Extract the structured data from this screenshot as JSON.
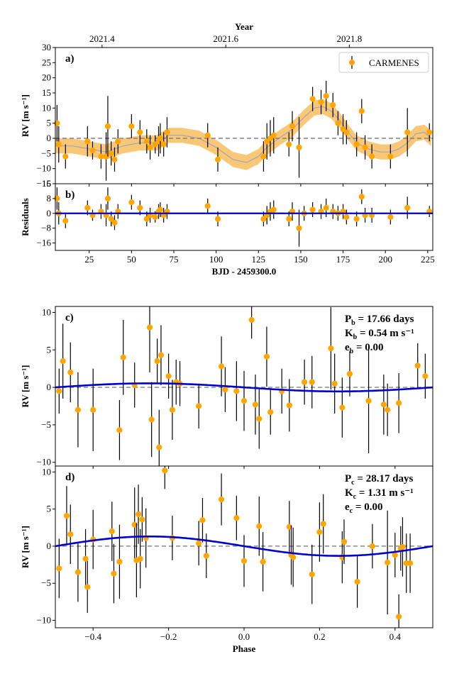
{
  "chart_data": [
    {
      "panel": "a)",
      "type": "scatter",
      "xlabel": "BJD - 2459300.0",
      "ylabel": "RV [m s⁻¹]",
      "top_axis_label": "Year",
      "top_ticks": [
        "2021.4",
        "2021.6",
        "2021.8"
      ],
      "top_tick_x": [
        32.6,
        105.7,
        178.7
      ],
      "xlim": [
        5,
        228
      ],
      "ylim": [
        -15,
        30
      ],
      "yticks": [
        -15,
        -10,
        -5,
        0,
        5,
        10,
        15,
        20,
        25,
        30
      ],
      "xticks": [
        25,
        50,
        75,
        100,
        125,
        150,
        175,
        200,
        225
      ],
      "legend": {
        "label": "CARMENES",
        "position": "top-right"
      },
      "colors": {
        "points": "#ffa500",
        "errorbars": "#000000",
        "model": "#a0a0c8",
        "band": "#f7b64a",
        "zero": "#808080"
      },
      "points": [
        {
          "x": 6,
          "y": 5,
          "e": 6
        },
        {
          "x": 7,
          "y": -2,
          "e": 6
        },
        {
          "x": 11,
          "y": -6,
          "e": 4
        },
        {
          "x": 24,
          "y": -1,
          "e": 5
        },
        {
          "x": 27,
          "y": -4,
          "e": 3
        },
        {
          "x": 32,
          "y": -6,
          "e": 4
        },
        {
          "x": 35,
          "y": -6,
          "e": 8
        },
        {
          "x": 36,
          "y": 4,
          "e": 10
        },
        {
          "x": 38,
          "y": -5,
          "e": 4
        },
        {
          "x": 40,
          "y": -7,
          "e": 4
        },
        {
          "x": 42,
          "y": -1,
          "e": 4
        },
        {
          "x": 50,
          "y": 4,
          "e": 4
        },
        {
          "x": 55,
          "y": 2,
          "e": 4
        },
        {
          "x": 59,
          "y": -1,
          "e": 4
        },
        {
          "x": 61,
          "y": -3,
          "e": 4
        },
        {
          "x": 64,
          "y": -2,
          "e": 3
        },
        {
          "x": 66,
          "y": -1,
          "e": 5
        },
        {
          "x": 67,
          "y": 0,
          "e": 5
        },
        {
          "x": 69,
          "y": -2,
          "e": 4
        },
        {
          "x": 71,
          "y": 2,
          "e": 5
        },
        {
          "x": 95,
          "y": 1,
          "e": 4
        },
        {
          "x": 101,
          "y": -7,
          "e": 4
        },
        {
          "x": 128,
          "y": -6,
          "e": 5
        },
        {
          "x": 130,
          "y": -1,
          "e": 6
        },
        {
          "x": 132,
          "y": 0,
          "e": 6
        },
        {
          "x": 134,
          "y": 1,
          "e": 6
        },
        {
          "x": 143,
          "y": -2,
          "e": 4
        },
        {
          "x": 145,
          "y": 4,
          "e": 5
        },
        {
          "x": 149,
          "y": -3,
          "e": 10
        },
        {
          "x": 157,
          "y": 13,
          "e": 4
        },
        {
          "x": 162,
          "y": 12,
          "e": 4
        },
        {
          "x": 165,
          "y": 14,
          "e": 5
        },
        {
          "x": 169,
          "y": 11,
          "e": 4
        },
        {
          "x": 172,
          "y": 5,
          "e": 4
        },
        {
          "x": 175,
          "y": 3,
          "e": 5
        },
        {
          "x": 177,
          "y": 2,
          "e": 4
        },
        {
          "x": 183,
          "y": -2,
          "e": 4
        },
        {
          "x": 186,
          "y": 9,
          "e": 4
        },
        {
          "x": 188,
          "y": -3,
          "e": 4
        },
        {
          "x": 192,
          "y": -6,
          "e": 4
        },
        {
          "x": 203,
          "y": -6,
          "e": 4
        },
        {
          "x": 213,
          "y": 2,
          "e": 8
        },
        {
          "x": 226,
          "y": 2,
          "e": 3
        }
      ],
      "model": {
        "x": [
          5,
          15,
          25,
          35,
          45,
          55,
          65,
          72,
          80,
          90,
          100,
          110,
          118,
          125,
          130,
          137,
          145,
          152,
          158,
          163,
          168,
          173,
          178,
          183,
          190,
          197,
          203,
          208,
          213,
          218,
          223,
          227
        ],
        "y": [
          -2.5,
          -2.5,
          -3.5,
          -4.5,
          -2.5,
          -1.5,
          -1.5,
          1,
          1,
          0,
          -3,
          -7,
          -8,
          -6,
          -3,
          0,
          3,
          7,
          10,
          10.5,
          9,
          6,
          2,
          -1.5,
          -3.5,
          -4.5,
          -4.5,
          -3.5,
          -1.5,
          1.5,
          2,
          0
        ]
      },
      "band_halfwidth": 2.5
    },
    {
      "panel": "b)",
      "type": "scatter",
      "ylabel": "Residuals",
      "xlim": [
        5,
        228
      ],
      "ylim": [
        -20,
        16
      ],
      "yticks": [
        -16,
        -8,
        0,
        8,
        16
      ],
      "points": [
        {
          "x": 6,
          "y": 8,
          "e": 6
        },
        {
          "x": 7,
          "y": 0,
          "e": 6
        },
        {
          "x": 11,
          "y": -4,
          "e": 4
        },
        {
          "x": 24,
          "y": 3,
          "e": 4
        },
        {
          "x": 27,
          "y": -1,
          "e": 3
        },
        {
          "x": 32,
          "y": 1,
          "e": 4
        },
        {
          "x": 35,
          "y": -1,
          "e": 6
        },
        {
          "x": 36,
          "y": 8,
          "e": 6
        },
        {
          "x": 38,
          "y": -3,
          "e": 4
        },
        {
          "x": 40,
          "y": -5,
          "e": 4
        },
        {
          "x": 42,
          "y": 1,
          "e": 4
        },
        {
          "x": 50,
          "y": 6,
          "e": 4
        },
        {
          "x": 55,
          "y": 3,
          "e": 4
        },
        {
          "x": 59,
          "y": -3,
          "e": 4
        },
        {
          "x": 61,
          "y": -1,
          "e": 4
        },
        {
          "x": 64,
          "y": -2,
          "e": 3
        },
        {
          "x": 66,
          "y": 1,
          "e": 4
        },
        {
          "x": 67,
          "y": 2,
          "e": 4
        },
        {
          "x": 69,
          "y": -1,
          "e": 4
        },
        {
          "x": 71,
          "y": 1,
          "e": 4
        },
        {
          "x": 95,
          "y": 4,
          "e": 4
        },
        {
          "x": 101,
          "y": -3,
          "e": 4
        },
        {
          "x": 128,
          "y": -3,
          "e": 4
        },
        {
          "x": 130,
          "y": -1,
          "e": 5
        },
        {
          "x": 132,
          "y": 1,
          "e": 5
        },
        {
          "x": 134,
          "y": 2,
          "e": 5
        },
        {
          "x": 143,
          "y": -3,
          "e": 4
        },
        {
          "x": 145,
          "y": 1,
          "e": 5
        },
        {
          "x": 149,
          "y": -8,
          "e": 10
        },
        {
          "x": 152,
          "y": 0,
          "e": 4
        },
        {
          "x": 157,
          "y": 2,
          "e": 4
        },
        {
          "x": 162,
          "y": 1,
          "e": 4
        },
        {
          "x": 165,
          "y": 3,
          "e": 5
        },
        {
          "x": 169,
          "y": 1,
          "e": 4
        },
        {
          "x": 172,
          "y": 0,
          "e": 4
        },
        {
          "x": 175,
          "y": 1,
          "e": 4
        },
        {
          "x": 177,
          "y": -2,
          "e": 4
        },
        {
          "x": 183,
          "y": -3,
          "e": 4
        },
        {
          "x": 186,
          "y": 9,
          "e": 4
        },
        {
          "x": 188,
          "y": -1,
          "e": 4
        },
        {
          "x": 192,
          "y": -1,
          "e": 4
        },
        {
          "x": 203,
          "y": -2,
          "e": 4
        },
        {
          "x": 213,
          "y": 3,
          "e": 6
        },
        {
          "x": 226,
          "y": 1,
          "e": 3
        }
      ]
    },
    {
      "panel": "c)",
      "type": "scatter",
      "ylabel": "RV [m s⁻¹]",
      "xlim": [
        -0.5,
        0.5
      ],
      "ylim": [
        -10.5,
        10.8
      ],
      "yticks": [
        -10,
        -5,
        0,
        5,
        10
      ],
      "annotation": {
        "P_sub": "b",
        "P": "17.66 days",
        "K_sub": "b",
        "K": "0.54 m s⁻¹",
        "e_sub": "b",
        "e": "0.00"
      },
      "amplitude": 0.54,
      "points": [
        {
          "x": -0.49,
          "y": -0.5,
          "e": 3
        },
        {
          "x": -0.48,
          "y": 3.5,
          "e": 5
        },
        {
          "x": -0.46,
          "y": 2,
          "e": 4
        },
        {
          "x": -0.44,
          "y": -3,
          "e": 5
        },
        {
          "x": -0.4,
          "y": -3,
          "e": 5.5
        },
        {
          "x": -0.33,
          "y": -5.7,
          "e": 4
        },
        {
          "x": -0.32,
          "y": 4,
          "e": 5
        },
        {
          "x": -0.29,
          "y": 0.3,
          "e": 3
        },
        {
          "x": -0.25,
          "y": 8,
          "e": 6
        },
        {
          "x": -0.245,
          "y": -4.3,
          "e": 5
        },
        {
          "x": -0.23,
          "y": 3.5,
          "e": 3
        },
        {
          "x": -0.225,
          "y": -8,
          "e": 5
        },
        {
          "x": -0.22,
          "y": 4.3,
          "e": 4
        },
        {
          "x": -0.2,
          "y": 1.5,
          "e": 3
        },
        {
          "x": -0.19,
          "y": -3,
          "e": 4
        },
        {
          "x": -0.18,
          "y": 0.7,
          "e": 3
        },
        {
          "x": -0.17,
          "y": 0.5,
          "e": 3
        },
        {
          "x": -0.12,
          "y": -2.5,
          "e": 3
        },
        {
          "x": -0.06,
          "y": 2.8,
          "e": 4
        },
        {
          "x": -0.05,
          "y": -0.3,
          "e": 3
        },
        {
          "x": -0.02,
          "y": -0.5,
          "e": 4
        },
        {
          "x": 0.0,
          "y": -1.8,
          "e": 4
        },
        {
          "x": 0.02,
          "y": 9,
          "e": 2.5
        },
        {
          "x": 0.03,
          "y": -2.3,
          "e": 4
        },
        {
          "x": 0.04,
          "y": -4.2,
          "e": 4
        },
        {
          "x": 0.06,
          "y": 4.1,
          "e": 4
        },
        {
          "x": 0.07,
          "y": -3.3,
          "e": 3
        },
        {
          "x": 0.1,
          "y": -0.5,
          "e": 3
        },
        {
          "x": 0.12,
          "y": -2.4,
          "e": 3.5
        },
        {
          "x": 0.16,
          "y": 0.7,
          "e": 3
        },
        {
          "x": 0.18,
          "y": 0.7,
          "e": 3.5
        },
        {
          "x": 0.23,
          "y": 5.2,
          "e": 5.5
        },
        {
          "x": 0.24,
          "y": 0.5,
          "e": 4
        },
        {
          "x": 0.26,
          "y": -2.7,
          "e": 4
        },
        {
          "x": 0.28,
          "y": 1.8,
          "e": 3
        },
        {
          "x": 0.33,
          "y": -1.8,
          "e": 7
        },
        {
          "x": 0.37,
          "y": -2.3,
          "e": 4
        },
        {
          "x": 0.38,
          "y": -3,
          "e": 3.5
        },
        {
          "x": 0.41,
          "y": -2.1,
          "e": 4
        },
        {
          "x": 0.46,
          "y": 2.9,
          "e": 3
        },
        {
          "x": 0.48,
          "y": 1.5,
          "e": 3
        }
      ]
    },
    {
      "panel": "d)",
      "type": "scatter",
      "xlabel": "Phase",
      "ylabel": "RV [m s⁻¹]",
      "xlim": [
        -0.5,
        0.5
      ],
      "xticks": [
        -0.4,
        -0.2,
        0.0,
        0.2,
        0.4
      ],
      "xtick_labels": [
        "−0.4",
        "−0.2",
        "0.0",
        "0.2",
        "0.4"
      ],
      "ylim": [
        -11,
        10.8
      ],
      "yticks": [
        -10,
        -5,
        0,
        5,
        10
      ],
      "annotation": {
        "P_sub": "c",
        "P": "28.17 days",
        "K_sub": "c",
        "K": "1.31 m s⁻¹",
        "e_sub": "c",
        "e": "0.00"
      },
      "amplitude": 1.31,
      "points": [
        {
          "x": -0.49,
          "y": -3,
          "e": 4
        },
        {
          "x": -0.47,
          "y": 4.1,
          "e": 4
        },
        {
          "x": -0.46,
          "y": 1.6,
          "e": 4
        },
        {
          "x": -0.44,
          "y": -3.5,
          "e": 4
        },
        {
          "x": -0.42,
          "y": -1.7,
          "e": 4
        },
        {
          "x": -0.415,
          "y": -5.5,
          "e": 3.5
        },
        {
          "x": -0.4,
          "y": 0.9,
          "e": 4
        },
        {
          "x": -0.35,
          "y": 2.0,
          "e": 4
        },
        {
          "x": -0.345,
          "y": -3.7,
          "e": 4
        },
        {
          "x": -0.33,
          "y": -2.1,
          "e": 5
        },
        {
          "x": -0.29,
          "y": 2.9,
          "e": 5
        },
        {
          "x": -0.285,
          "y": -1.9,
          "e": 5
        },
        {
          "x": -0.28,
          "y": 4.3,
          "e": 4
        },
        {
          "x": -0.275,
          "y": -1.7,
          "e": 4
        },
        {
          "x": -0.27,
          "y": 3.6,
          "e": 3
        },
        {
          "x": -0.26,
          "y": 1.1,
          "e": 4
        },
        {
          "x": -0.21,
          "y": 10.2,
          "e": 2.5
        },
        {
          "x": -0.19,
          "y": 1.1,
          "e": 3
        },
        {
          "x": -0.12,
          "y": 0.4,
          "e": 3
        },
        {
          "x": -0.11,
          "y": 3.5,
          "e": 3
        },
        {
          "x": -0.1,
          "y": -1.3,
          "e": 3
        },
        {
          "x": -0.06,
          "y": 6.3,
          "e": 3.5
        },
        {
          "x": -0.02,
          "y": 3.8,
          "e": 3
        },
        {
          "x": 0.0,
          "y": -2,
          "e": 3.5
        },
        {
          "x": 0.04,
          "y": 2.7,
          "e": 4
        },
        {
          "x": 0.05,
          "y": -2.1,
          "e": 4
        },
        {
          "x": 0.12,
          "y": 2.6,
          "e": 3.5
        },
        {
          "x": 0.125,
          "y": -1.2,
          "e": 4
        },
        {
          "x": 0.13,
          "y": -1.5,
          "e": 4
        },
        {
          "x": 0.18,
          "y": -3.8,
          "e": 4
        },
        {
          "x": 0.2,
          "y": 1.9,
          "e": 4
        },
        {
          "x": 0.21,
          "y": 3.0,
          "e": 4
        },
        {
          "x": 0.26,
          "y": -1.5,
          "e": 3.5
        },
        {
          "x": 0.265,
          "y": 0.6,
          "e": 3
        },
        {
          "x": 0.3,
          "y": -4.8,
          "e": 3.5
        },
        {
          "x": 0.34,
          "y": 0.0,
          "e": 3
        },
        {
          "x": 0.38,
          "y": -2.2,
          "e": 7
        },
        {
          "x": 0.41,
          "y": -9.5,
          "e": 3
        },
        {
          "x": 0.415,
          "y": -0.3,
          "e": 3
        },
        {
          "x": 0.42,
          "y": -0.1,
          "e": 4
        },
        {
          "x": 0.43,
          "y": -2.3,
          "e": 4
        },
        {
          "x": 0.44,
          "y": -2.3,
          "e": 4
        },
        {
          "x": 0.4,
          "y": -1.2,
          "e": 3
        }
      ]
    }
  ]
}
